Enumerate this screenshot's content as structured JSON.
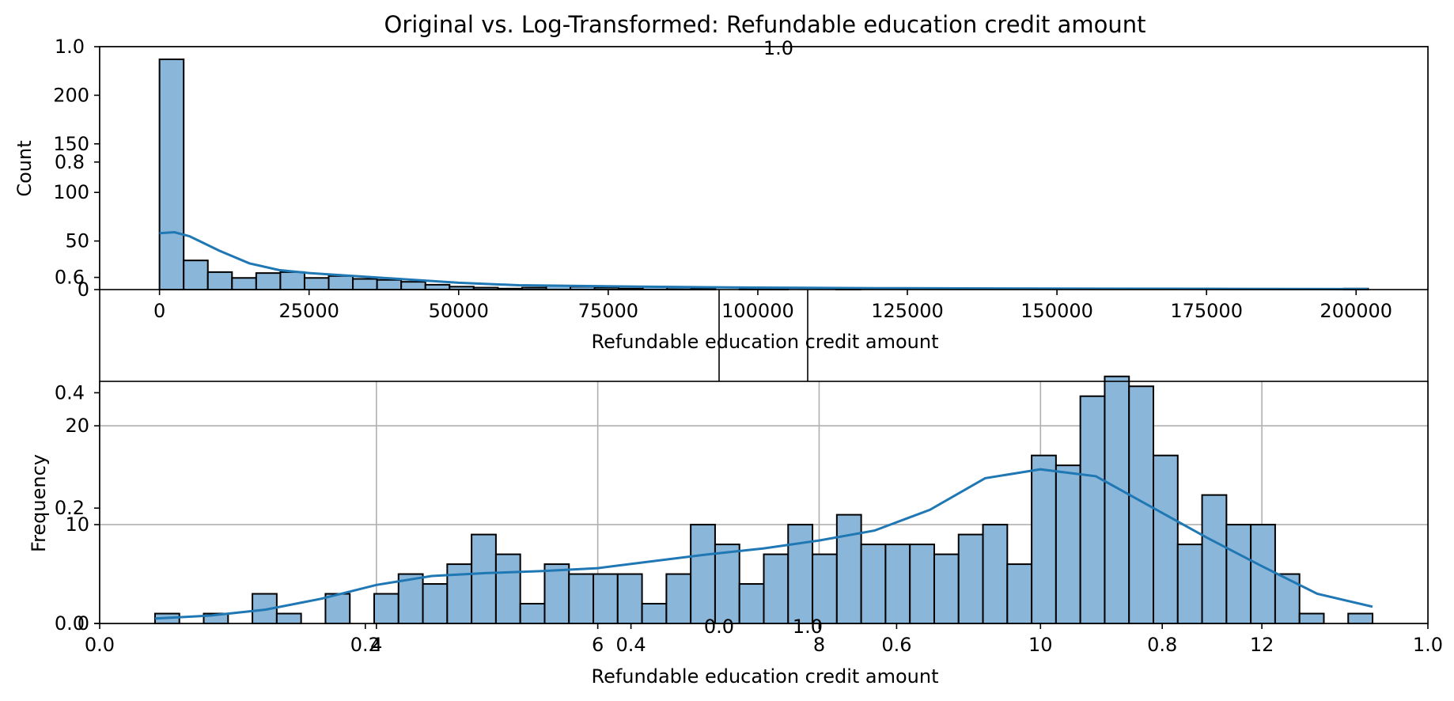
{
  "figure": {
    "title": "Original vs. Log-Transformed: Refundable education credit amount",
    "overlay_axis": {
      "x_ticks": [
        "0.0",
        "0.2",
        "0.4",
        "0.6",
        "0.8",
        "1.0"
      ],
      "y_ticks": [
        "0.0",
        "0.2",
        "0.4",
        "0.6",
        "0.8",
        "1.0"
      ],
      "inner_panel_x_ticks": [
        "0.0",
        "0.2",
        "0.4",
        "0.6",
        "0.8",
        "1.0"
      ]
    }
  },
  "colors": {
    "bar_fill": "#8ab6d9",
    "bar_edge": "#000000",
    "kde_line": "#1f77b4",
    "grid": "#b0b0b0"
  },
  "chart_data": [
    {
      "type": "bar",
      "subtype": "histogram_with_kde",
      "xlabel": "Refundable education credit amount",
      "ylabel": "Count",
      "xlim": [
        -10000,
        212000
      ],
      "ylim": [
        0,
        250
      ],
      "x_ticks": [
        0,
        25000,
        50000,
        75000,
        100000,
        125000,
        150000,
        175000,
        200000
      ],
      "y_ticks": [
        0,
        50,
        100,
        150,
        200
      ],
      "grid": false,
      "bin_start": 0,
      "bin_width": 4040,
      "counts": [
        237,
        30,
        18,
        12,
        17,
        18,
        12,
        14,
        11,
        10,
        8,
        5,
        3,
        2,
        1,
        2,
        4,
        3,
        2,
        1,
        3,
        2,
        1,
        0,
        1,
        1,
        0,
        0,
        1,
        0,
        0,
        0,
        0,
        0,
        0,
        0,
        0,
        0,
        0,
        0,
        0,
        0,
        0,
        0,
        0,
        0,
        0,
        0,
        0,
        1
      ],
      "kde": {
        "x": [
          0,
          2500,
          5000,
          10000,
          15000,
          20000,
          25000,
          30000,
          40000,
          50000,
          60000,
          80000,
          100000,
          120000,
          150000,
          180000,
          202000
        ],
        "y": [
          58,
          59,
          55,
          40,
          27,
          20,
          17,
          15,
          11,
          7,
          4.5,
          3,
          2,
          1.5,
          1,
          0.7,
          0.5
        ]
      }
    },
    {
      "type": "bar",
      "subtype": "histogram_with_kde",
      "xlabel": "Refundable education credit amount",
      "ylabel": "Frequency",
      "xlim": [
        1.5,
        13.5
      ],
      "ylim": [
        0,
        24.5
      ],
      "x_ticks": [
        4,
        6,
        8,
        10,
        12
      ],
      "y_ticks": [
        0,
        10,
        20
      ],
      "grid": true,
      "bin_start": 2.0,
      "bin_width": 0.22,
      "counts": [
        1,
        0,
        1,
        0,
        3,
        1,
        0,
        3,
        0,
        3,
        5,
        4,
        6,
        9,
        7,
        2,
        6,
        5,
        5,
        5,
        2,
        5,
        10,
        8,
        4,
        7,
        10,
        7,
        11,
        8,
        8,
        8,
        7,
        9,
        10,
        6,
        17,
        16,
        23,
        25,
        24,
        17,
        8,
        13,
        10,
        10,
        5,
        1,
        0,
        1
      ],
      "kde": {
        "x": [
          2.0,
          2.5,
          3.0,
          3.5,
          4.0,
          4.5,
          5.0,
          5.5,
          6.0,
          6.5,
          7.0,
          7.5,
          8.0,
          8.5,
          9.0,
          9.5,
          10.0,
          10.5,
          11.0,
          11.5,
          12.0,
          12.5,
          13.0
        ],
        "y": [
          0.5,
          0.8,
          1.4,
          2.5,
          3.9,
          4.8,
          5.1,
          5.3,
          5.6,
          6.3,
          7.0,
          7.6,
          8.4,
          9.4,
          11.5,
          14.7,
          15.6,
          14.9,
          11.8,
          8.7,
          5.8,
          3.0,
          1.7
        ]
      }
    }
  ]
}
